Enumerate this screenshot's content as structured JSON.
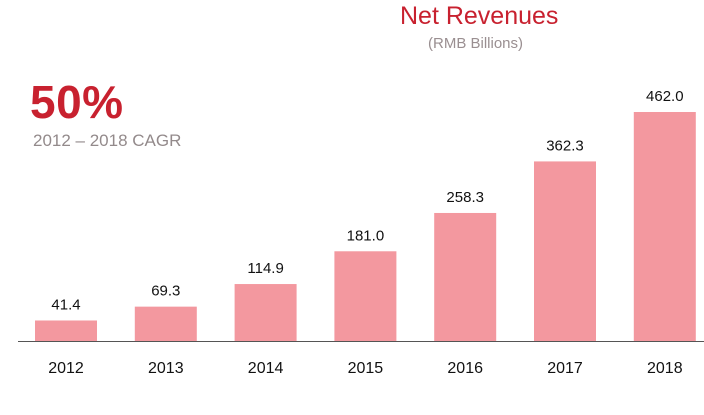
{
  "header": {
    "title": "Net Revenues",
    "subtitle": "(RMB Billions)"
  },
  "highlight": {
    "value": "50%",
    "label": "2012 – 2018 CAGR"
  },
  "colors": {
    "bar": "#f3989f",
    "accent": "#c8212f",
    "muted_text": "#938a8b",
    "axis": "#555555"
  },
  "chart_data": {
    "type": "bar",
    "title": "Net Revenues",
    "subtitle": "(RMB Billions)",
    "xlabel": "",
    "ylabel": "",
    "categories": [
      "2012",
      "2013",
      "2014",
      "2015",
      "2016",
      "2017",
      "2018"
    ],
    "values": [
      41.4,
      69.3,
      114.9,
      181.0,
      258.3,
      362.3,
      462.0
    ],
    "value_labels": [
      "41.4",
      "69.3",
      "114.9",
      "181.0",
      "258.3",
      "362.3",
      "462.0"
    ],
    "ylim": [
      0,
      462
    ],
    "grid": false,
    "legend": "none"
  }
}
